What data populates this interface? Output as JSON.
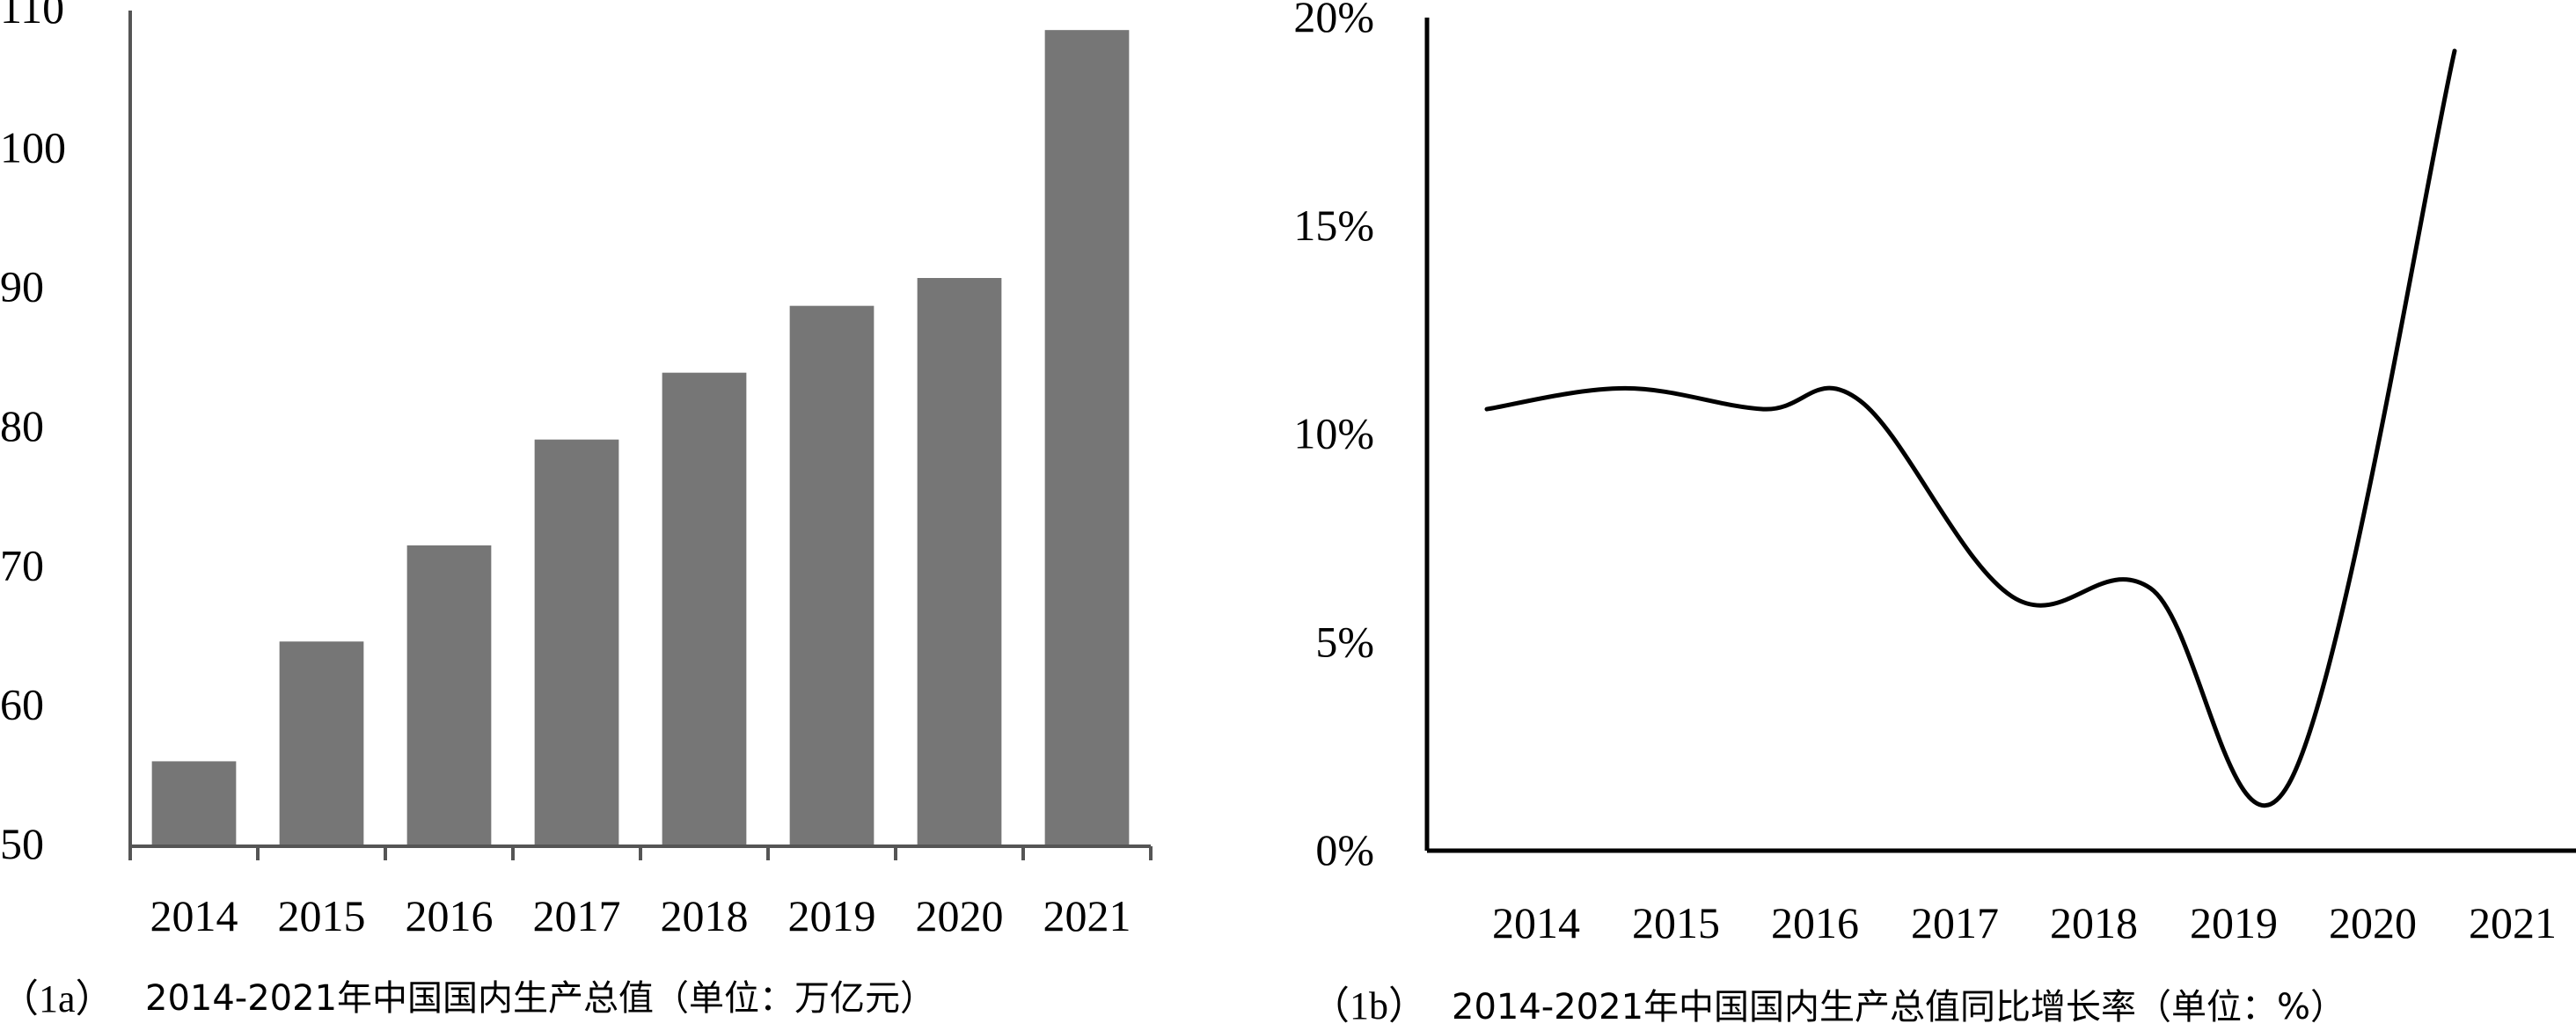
{
  "chart_data": [
    {
      "type": "bar",
      "caption_id": "（1a）",
      "caption_text": "2014-2021年中国国内生产总值（单位：万亿元）",
      "categories": [
        "2014",
        "2015",
        "2016",
        "2017",
        "2018",
        "2019",
        "2020",
        "2021"
      ],
      "values": [
        56.1,
        64.7,
        71.6,
        79.2,
        84.0,
        88.8,
        90.8,
        108.6
      ],
      "ylim": [
        50,
        110
      ],
      "yticks": [
        50,
        60,
        70,
        80,
        90,
        100,
        110
      ],
      "bar_color": "#767676",
      "grid": false
    },
    {
      "type": "line",
      "caption_id": "（1b）",
      "caption_text": "2014-2021年中国国内生产总值同比增长率（单位：%）",
      "categories": [
        "2014",
        "2015",
        "2016",
        "2017",
        "2018",
        "2019",
        "2020",
        "2021"
      ],
      "x": [
        2014,
        2015,
        2016,
        2016.7,
        2017.8,
        2018.8,
        2019.8,
        2021
      ],
      "y": [
        10.6,
        11.1,
        10.6,
        10.8,
        6.1,
        6.3,
        1.6,
        19.2
      ],
      "ylim": [
        0,
        20
      ],
      "yticks": [
        "0%",
        "5%",
        "10%",
        "15%",
        "20%"
      ],
      "line_color": "#000000",
      "grid": false
    }
  ]
}
